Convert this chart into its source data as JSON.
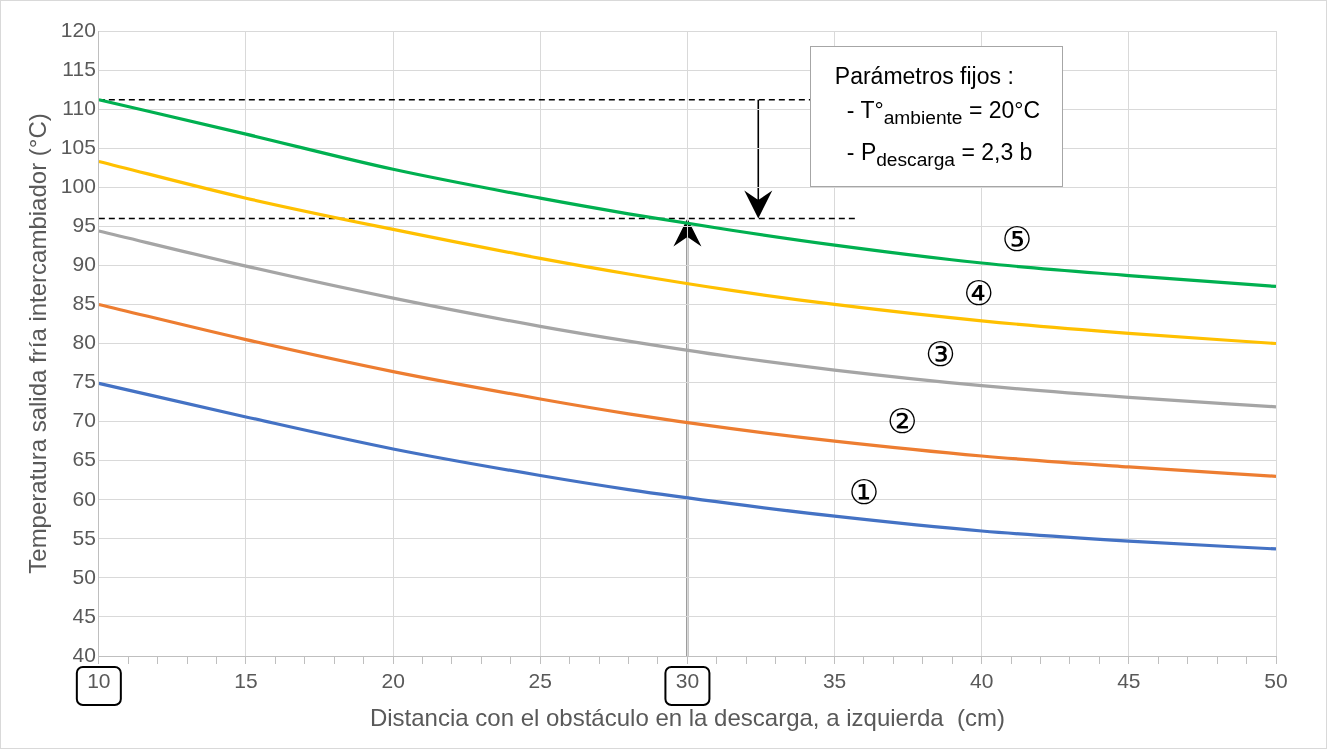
{
  "chart_data": {
    "type": "line",
    "xlabel": "Distancia con el obstáculo en la descarga, a izquierda  (cm)",
    "ylabel": "Temperatura salida fría intercambiador (°C)",
    "x": [
      10,
      15,
      20,
      25,
      28,
      31.5,
      35,
      40,
      45,
      50
    ],
    "series": [
      {
        "name": "①",
        "color": "#4472c4",
        "values": [
          74.9,
          70.6,
          66.5,
          63.1,
          61.3,
          59.5,
          57.9,
          56.0,
          54.7,
          53.7
        ]
      },
      {
        "name": "②",
        "color": "#ed7d31",
        "values": [
          85.0,
          80.5,
          76.4,
          72.9,
          71.0,
          69.1,
          67.5,
          65.6,
          64.2,
          63.0
        ]
      },
      {
        "name": "③",
        "color": "#a5a5a5",
        "values": [
          94.4,
          89.9,
          85.8,
          82.2,
          80.3,
          78.3,
          76.6,
          74.6,
          73.1,
          71.9
        ]
      },
      {
        "name": "④",
        "color": "#ffc000",
        "values": [
          103.3,
          98.6,
          94.6,
          90.9,
          88.9,
          86.8,
          85.0,
          82.9,
          81.3,
          80.0
        ]
      },
      {
        "name": "⑤",
        "color": "#00b050",
        "values": [
          111.2,
          106.8,
          102.3,
          98.6,
          96.6,
          94.5,
          92.6,
          90.3,
          88.7,
          87.3
        ]
      },
      {
        "type": "line",
        "color": "#000000",
        "line_style": "dashed",
        "x": [
          10,
          34.2
        ],
        "values": [
          111.2,
          111.2
        ]
      },
      {
        "type": "line",
        "color": "#000000",
        "line_style": "dashed",
        "x": [
          10,
          35.7
        ],
        "values": [
          96,
          96
        ]
      }
    ],
    "annotations": [
      "Parámetros fijos :",
      "- T°$_{ambiente}$ = 20°C",
      "- P$_{descarga}$ = 2,3 b"
    ],
    "xlim": [
      10,
      50
    ],
    "ylim": [
      40,
      120
    ],
    "xticks": [
      10,
      {
        "value": 11,
        "label": null
      },
      {
        "value": 12,
        "label": null
      },
      {
        "value": 13,
        "label": null
      },
      {
        "value": 14,
        "label": null
      },
      15,
      {
        "value": 16,
        "label": null
      },
      {
        "value": 17,
        "label": null
      },
      {
        "value": 18,
        "label": null
      },
      {
        "value": 19,
        "label": null
      },
      20,
      {
        "value": 21,
        "label": null
      },
      {
        "value": 22,
        "label": null
      },
      {
        "value": 23,
        "label": null
      },
      {
        "value": 24,
        "label": null
      },
      25,
      {
        "value": 26,
        "label": null
      },
      {
        "value": 27,
        "label": null
      },
      {
        "value": 28,
        "label": null
      },
      {
        "value": 29,
        "label": null
      },
      30,
      {
        "value": 31,
        "label": null
      },
      {
        "value": 32,
        "label": null
      },
      {
        "value": 33,
        "label": null
      },
      {
        "value": 34,
        "label": null
      },
      35,
      {
        "value": 36,
        "label": null
      },
      {
        "value": 37,
        "label": null
      },
      {
        "value": 38,
        "label": null
      },
      {
        "value": 39,
        "label": null
      },
      40,
      {
        "value": 41,
        "label": null
      },
      {
        "value": 42,
        "label": null
      },
      {
        "value": 43,
        "label": null
      },
      {
        "value": 44,
        "label": null
      },
      45,
      {
        "value": 46,
        "label": null
      },
      {
        "value": 47,
        "label": null
      },
      {
        "value": 48,
        "label": null
      },
      {
        "value": 49,
        "label": null
      },
      50
    ],
    "yticks": [
      40,
      45,
      50,
      55,
      60,
      65,
      70,
      75,
      80,
      85,
      90,
      95,
      100,
      105,
      110,
      115,
      120
    ],
    "grid": true,
    "legend": false,
    "marker": "none",
    "line_style": "solid"
  }
}
